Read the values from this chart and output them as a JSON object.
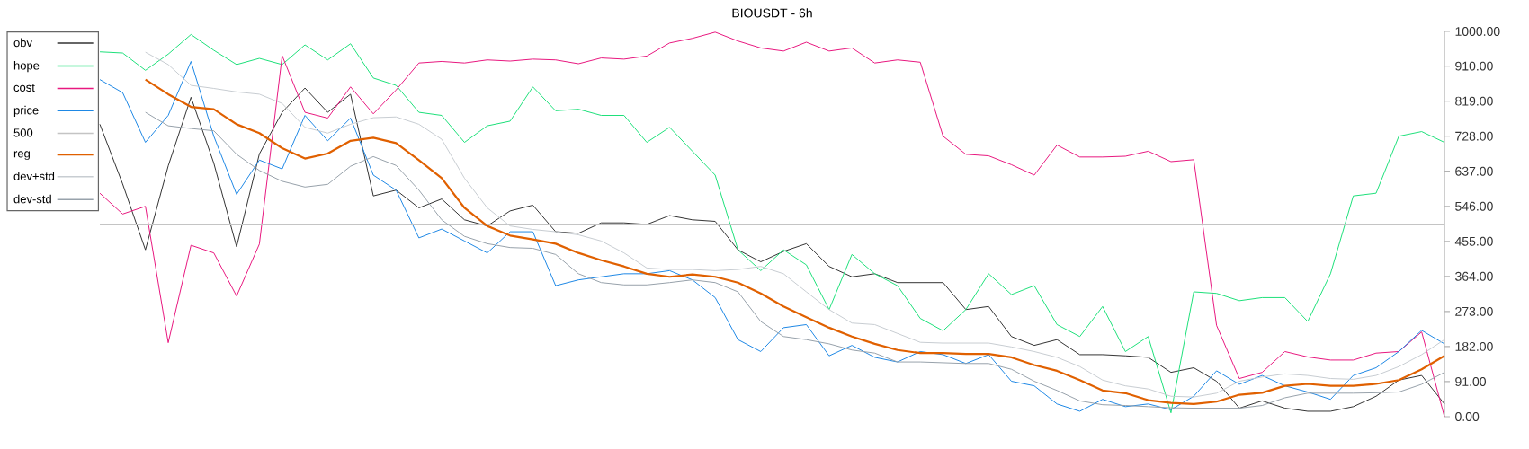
{
  "chart_data": {
    "type": "line",
    "title": "BIOUSDT - 6h",
    "categories": [
      null,
      null,
      null,
      null,
      null,
      null,
      null,
      null,
      null,
      null,
      null,
      null,
      null,
      null,
      null,
      null,
      null,
      null,
      null,
      null,
      null,
      null,
      null,
      null,
      null,
      null,
      null,
      null,
      null,
      null,
      null,
      null,
      null,
      null,
      null,
      null,
      null,
      null,
      null,
      null,
      null,
      null,
      null,
      null,
      null,
      null,
      null,
      null,
      null,
      null,
      null,
      null,
      null,
      null,
      null,
      null,
      null,
      null,
      null,
      null
    ],
    "ylim": [
      0,
      1000
    ],
    "yticks": [
      {
        "value": 0,
        "label": "0.00"
      },
      {
        "value": 91,
        "label": "91.00"
      },
      {
        "value": 182,
        "label": "182.00"
      },
      {
        "value": 273,
        "label": "273.00"
      },
      {
        "value": 364,
        "label": "364.00"
      },
      {
        "value": 455,
        "label": "455.00"
      },
      {
        "value": 546,
        "label": "546.00"
      },
      {
        "value": 637,
        "label": "637.00"
      },
      {
        "value": 728,
        "label": "728.00"
      },
      {
        "value": 819,
        "label": "819.00"
      },
      {
        "value": 910,
        "label": "910.00"
      },
      {
        "value": 1000,
        "label": "1000.00"
      }
    ],
    "legend": "top left",
    "marker": "none",
    "grid": false,
    "series": [
      {
        "name": "obv",
        "color": "#333333",
        "values": [
          759,
          604,
          433,
          651,
          829,
          658,
          441,
          682,
          790,
          853,
          790,
          837,
          573,
          588,
          542,
          565,
          511,
          495,
          534,
          549,
          480,
          476,
          503,
          503,
          499,
          522,
          511,
          507,
          433,
          402,
          429,
          449,
          390,
          363,
          371,
          348,
          348,
          348,
          278,
          286,
          208,
          185,
          200,
          161,
          161,
          158,
          154,
          115,
          127,
          92,
          22,
          41,
          22,
          14,
          14,
          26,
          53,
          95,
          107,
          33
        ]
      },
      {
        "name": "hope",
        "color": "#1ee07a",
        "values": [
          947,
          944,
          899,
          941,
          992,
          951,
          914,
          930,
          914,
          965,
          926,
          968,
          879,
          860,
          790,
          782,
          712,
          755,
          767,
          856,
          794,
          798,
          782,
          782,
          712,
          751,
          689,
          627,
          433,
          379,
          433,
          394,
          278,
          421,
          371,
          340,
          255,
          223,
          278,
          371,
          317,
          340,
          239,
          208,
          286,
          169,
          208,
          10,
          324,
          320,
          301,
          309,
          309,
          247,
          371,
          573,
          580,
          728,
          740,
          712
        ]
      },
      {
        "name": "cost",
        "color": "#e8187f",
        "values": [
          580,
          526,
          546,
          192,
          445,
          425,
          313,
          448,
          937,
          790,
          775,
          856,
          786,
          848,
          918,
          922,
          918,
          926,
          923,
          928,
          926,
          916,
          931,
          928,
          936,
          970,
          982,
          998,
          975,
          957,
          949,
          972,
          949,
          957,
          918,
          926,
          920,
          728,
          681,
          677,
          654,
          627,
          705,
          674,
          674,
          676,
          689,
          662,
          667,
          237,
          99,
          115,
          169,
          155,
          147,
          147,
          165,
          169,
          220,
          0
        ]
      },
      {
        "name": "price",
        "color": "#1e88e5",
        "values": [
          875,
          841,
          712,
          782,
          922,
          728,
          577,
          666,
          643,
          782,
          716,
          775,
          627,
          588,
          464,
          487,
          456,
          425,
          480,
          480,
          340,
          355,
          363,
          371,
          371,
          379,
          355,
          309,
          200,
          169,
          231,
          239,
          158,
          185,
          154,
          142,
          169,
          161,
          138,
          161,
          92,
          80,
          33,
          14,
          45,
          26,
          33,
          18,
          53,
          119,
          84,
          107,
          80,
          64,
          45,
          107,
          127,
          169,
          224,
          189
        ]
      },
      {
        "name": "500",
        "color": "#c4c4c4",
        "values": [
          500,
          500,
          500,
          500,
          500,
          500,
          500,
          500,
          500,
          500,
          500,
          500,
          500,
          500,
          500,
          500,
          500,
          500,
          500,
          500,
          500,
          500,
          500,
          500,
          500,
          500,
          500,
          500,
          500,
          500,
          500,
          500,
          500,
          500,
          500,
          500,
          500,
          500,
          500,
          500,
          500,
          500,
          500,
          500,
          500,
          500,
          500,
          500,
          500,
          500,
          500,
          500,
          500,
          500,
          500,
          500,
          500,
          500,
          500,
          500
        ]
      },
      {
        "name": "reg",
        "color": "#e06000",
        "values": [
          null,
          null,
          875,
          837,
          804,
          798,
          759,
          736,
          697,
          670,
          683,
          716,
          724,
          710,
          666,
          619,
          542,
          495,
          470,
          460,
          449,
          425,
          406,
          390,
          371,
          363,
          369,
          363,
          348,
          320,
          286,
          258,
          231,
          208,
          189,
          173,
          165,
          165,
          163,
          163,
          154,
          134,
          119,
          95,
          68,
          61,
          43,
          36,
          33,
          39,
          57,
          62,
          80,
          85,
          80,
          80,
          85,
          95,
          123,
          158
        ]
      },
      {
        "name": "dev+std",
        "color": "#c8cdd2",
        "values": [
          null,
          null,
          946,
          914,
          860,
          852,
          843,
          837,
          813,
          751,
          736,
          759,
          776,
          778,
          759,
          720,
          619,
          542,
          495,
          486,
          480,
          472,
          456,
          425,
          386,
          382,
          382,
          379,
          382,
          390,
          371,
          324,
          278,
          243,
          239,
          216,
          193,
          191,
          191,
          191,
          181,
          169,
          154,
          130,
          95,
          80,
          72,
          53,
          51,
          61,
          92,
          103,
          111,
          107,
          99,
          97,
          107,
          130,
          161,
          200
        ]
      },
      {
        "name": "dev-std",
        "color": "#98a2ab",
        "values": [
          null,
          null,
          790,
          755,
          748,
          742,
          681,
          639,
          611,
          596,
          603,
          650,
          675,
          652,
          588,
          511,
          468,
          449,
          439,
          437,
          421,
          371,
          348,
          342,
          342,
          348,
          355,
          348,
          324,
          247,
          208,
          200,
          189,
          173,
          165,
          142,
          142,
          140,
          138,
          138,
          123,
          92,
          68,
          41,
          31,
          29,
          26,
          23,
          22,
          22,
          22,
          29,
          49,
          61,
          61,
          61,
          62,
          64,
          84,
          115
        ]
      }
    ]
  }
}
